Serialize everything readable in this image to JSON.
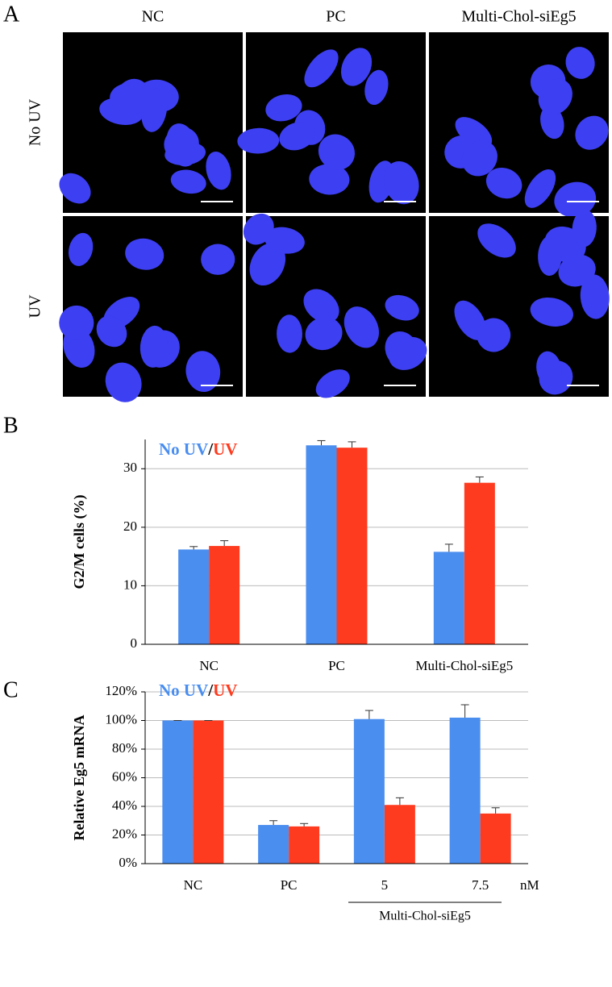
{
  "panel_labels": [
    "A",
    "B",
    "C"
  ],
  "panel_a": {
    "columns": [
      "NC",
      "PC",
      "Multi-Chol-siEg5"
    ],
    "rows": [
      "No UV",
      "UV"
    ]
  },
  "legend_separator": "/",
  "chart_data": [
    {
      "type": "bar",
      "y_label": "G2/M cells (%)",
      "categories": [
        "NC",
        "PC",
        "Multi-Chol-siEg5"
      ],
      "series": [
        {
          "name": "No UV",
          "color": "#4a8ef0",
          "values": [
            16.2,
            34.0,
            15.8
          ],
          "errors": [
            0.5,
            0.8,
            1.3
          ]
        },
        {
          "name": "UV",
          "color": "#ff3b1f",
          "values": [
            16.8,
            33.6,
            27.6
          ],
          "errors": [
            0.9,
            1.0,
            1.0
          ]
        }
      ],
      "ylim": [
        0,
        35
      ],
      "yticks": [
        0,
        10,
        20,
        30
      ],
      "grid": true
    },
    {
      "type": "bar",
      "y_label": "Relative Eg5 mRNA",
      "categories": [
        "NC",
        "PC",
        "5",
        "7.5"
      ],
      "x_unit": "nM",
      "group_label": "Multi-Chol-siEg5",
      "series": [
        {
          "name": "No UV",
          "color": "#4a8ef0",
          "values": [
            100,
            27,
            101,
            102
          ],
          "errors": [
            0,
            3,
            6,
            9
          ]
        },
        {
          "name": "UV",
          "color": "#ff3b1f",
          "values": [
            100,
            26,
            41,
            35
          ],
          "errors": [
            0,
            2,
            5,
            4
          ]
        }
      ],
      "ylim": [
        0,
        120
      ],
      "yticks": [
        {
          "value": 0,
          "label": "0%"
        },
        {
          "value": 20,
          "label": "20%"
        },
        {
          "value": 40,
          "label": "40%"
        },
        {
          "value": 60,
          "label": "60%"
        },
        {
          "value": 80,
          "label": "80%"
        },
        {
          "value": 100,
          "label": "100%"
        },
        {
          "value": 120,
          "label": "120%"
        }
      ],
      "grid": true
    }
  ]
}
